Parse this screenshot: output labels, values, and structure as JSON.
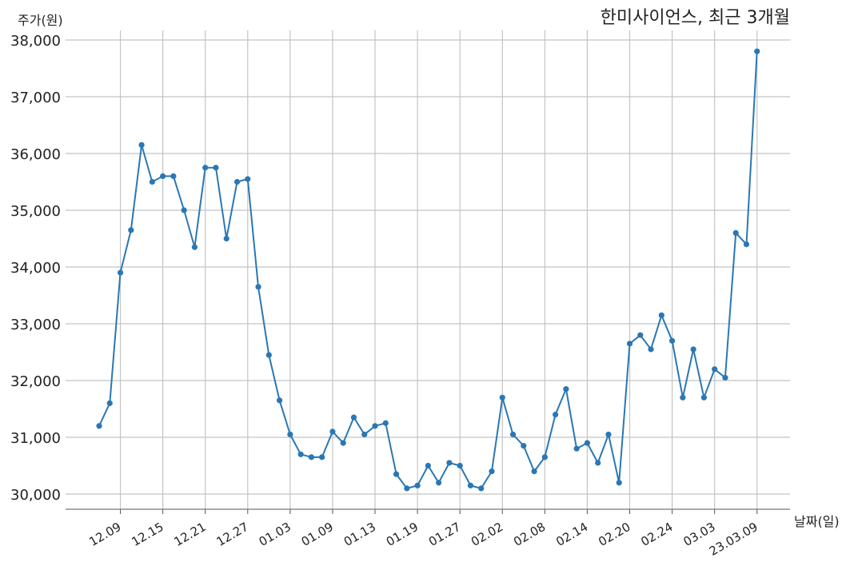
{
  "chart_data": {
    "type": "line",
    "title": "한미사이언스, 최근 3개월",
    "xlabel": "날짜(일)",
    "ylabel": "주가(원)",
    "ylim": [
      29700,
      38200
    ],
    "yticks": [
      30000,
      31000,
      32000,
      33000,
      34000,
      35000,
      36000,
      37000,
      38000
    ],
    "ytick_labels": [
      "30,000",
      "31,000",
      "32,000",
      "33,000",
      "34,000",
      "35,000",
      "36,000",
      "37,000",
      "38,000"
    ],
    "xtick_labels": [
      "12.09",
      "12.15",
      "12.21",
      "12.27",
      "01.03",
      "01.09",
      "01.13",
      "01.19",
      "01.27",
      "02.02",
      "02.08",
      "02.14",
      "02.20",
      "02.24",
      "03.03",
      "23.03.09"
    ],
    "xtick_index": [
      2,
      6,
      10,
      14,
      18,
      22,
      26,
      30,
      34,
      38,
      42,
      46,
      50,
      54,
      58,
      62
    ],
    "grid": true,
    "color": "#2a77b4",
    "values": [
      31200,
      31600,
      33900,
      34650,
      36150,
      35500,
      35600,
      35600,
      35000,
      34350,
      35750,
      35750,
      34500,
      35500,
      35550,
      33650,
      32450,
      31650,
      31050,
      30700,
      30650,
      30650,
      31100,
      30900,
      31350,
      31050,
      31200,
      31250,
      30350,
      30100,
      30150,
      30500,
      30200,
      30550,
      30500,
      30150,
      30100,
      30400,
      31700,
      31050,
      30850,
      30400,
      30650,
      31400,
      31850,
      30800,
      30900,
      30550,
      31050,
      30200,
      32650,
      32800,
      32550,
      33150,
      32700,
      31700,
      32550,
      31700,
      32200,
      32050,
      34600,
      34400,
      37800
    ]
  }
}
